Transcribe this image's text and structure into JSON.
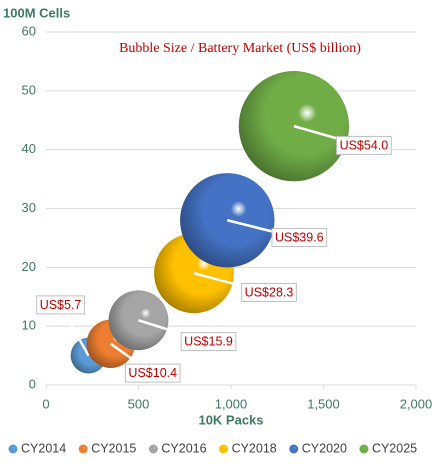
{
  "chart_data": {
    "type": "bubble",
    "title": "Bubble Size  / Battery Market (US$ billion)",
    "x_label": "10K Packs",
    "y_label": "100M Cells",
    "xlim": [
      0,
      2000
    ],
    "xticks": [
      0,
      500,
      {
        "value": 1000,
        "label": "1,000"
      },
      {
        "value": 1500,
        "label": "1,500"
      },
      {
        "value": 2000,
        "label": "2,000"
      }
    ],
    "ylim": [
      0,
      60
    ],
    "yticks": [
      0,
      10,
      20,
      30,
      40,
      50,
      60
    ],
    "grid": true,
    "series": [
      {
        "name": "CY2014",
        "color": "#5b9bd5",
        "x": [
          230
        ],
        "y": [
          5
        ],
        "size": [
          5.7
        ],
        "value_labels": [
          "US$5.7"
        ]
      },
      {
        "name": "CY2015",
        "color": "#ed7d31",
        "x": [
          350
        ],
        "y": [
          7
        ],
        "size": [
          10.4
        ],
        "value_labels": [
          "US$10.4"
        ]
      },
      {
        "name": "CY2016",
        "color": "#a5a5a5",
        "x": [
          500
        ],
        "y": [
          11
        ],
        "size": [
          15.9
        ],
        "value_labels": [
          "US$15.9"
        ]
      },
      {
        "name": "CY2018",
        "color": "#ffc000",
        "x": [
          800
        ],
        "y": [
          19
        ],
        "size": [
          28.3
        ],
        "value_labels": [
          "US$28.3"
        ]
      },
      {
        "name": "CY2020",
        "color": "#4472c4",
        "x": [
          980
        ],
        "y": [
          28
        ],
        "size": [
          39.6
        ],
        "value_labels": [
          "US$39.6"
        ]
      },
      {
        "name": "CY2025",
        "color": "#70ad47",
        "x": [
          1340
        ],
        "y": [
          44
        ],
        "size": [
          54.0
        ],
        "value_labels": [
          "US$54.0"
        ]
      }
    ]
  }
}
